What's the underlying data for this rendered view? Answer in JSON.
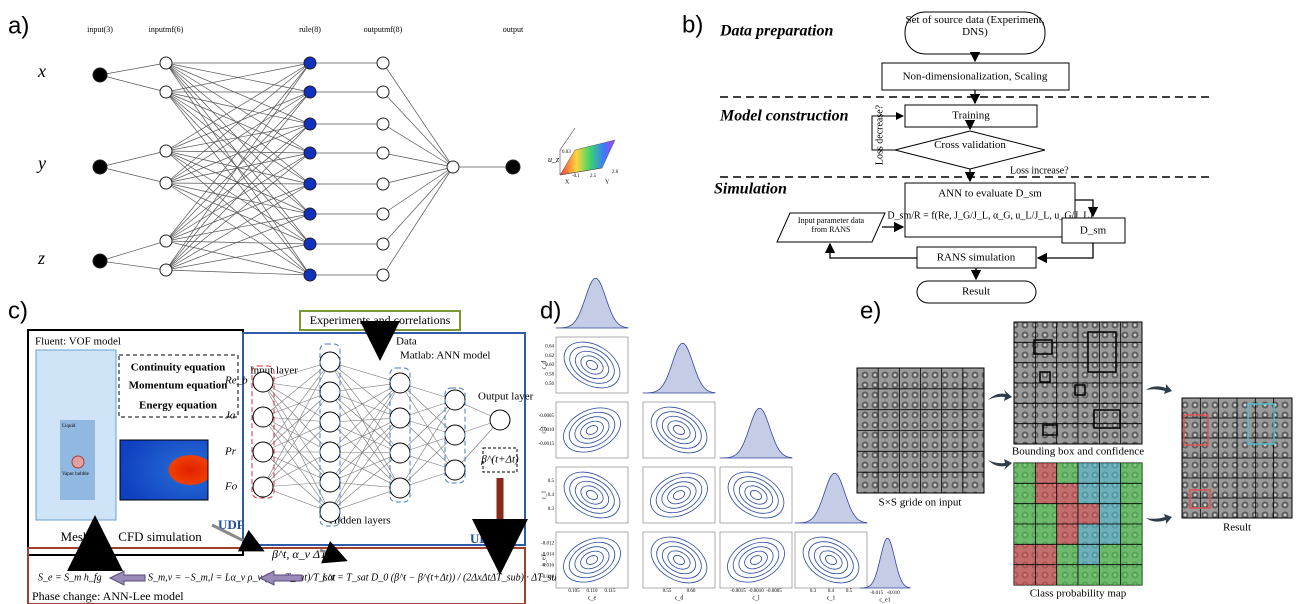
{
  "panel_a": {
    "label": "a)",
    "layers": [
      "input(3)",
      "inputmf(6)",
      "rule(8)",
      "outputmf(8)",
      "output"
    ],
    "inputs": [
      "x",
      "y",
      "z"
    ],
    "surface_labels": [
      "u_z",
      "0.03",
      "X",
      "Y",
      "-0.1",
      "2.5",
      "2.6"
    ]
  },
  "panel_b": {
    "label": "b)",
    "sections": [
      "Data preparation",
      "Model construction",
      "Simulation"
    ],
    "source": "Set of source data (Experiment, DNS)",
    "scaling": "Non-dimensionalization, Scaling",
    "training": "Training",
    "cross": "Cross validation",
    "loss_decrease": "Loss decrease?",
    "loss_increase": "Loss increase?",
    "ann": "ANN to evaluate D_sm",
    "formula": "D_sm/R = f(Re, J_G/J_L, α_G, u_L/J_L, u_G/J_L)",
    "input_param": "Input parameter data from RANS",
    "dsm": "D_sm",
    "rans": "RANS simulation",
    "result": "Result"
  },
  "panel_c": {
    "label": "c)",
    "fluent": "Fluent: VOF model",
    "equations": [
      "Continuity equation",
      "Momentum equation",
      "Energy equation"
    ],
    "liquid": "Liquid",
    "vapor": "Vapor bubble",
    "mesh": "Mesh",
    "cfd": "CFD simulation",
    "udf": "UDF",
    "experiments": "Experiments and correlations",
    "data": "Data",
    "matlab": "Matlab: ANN model",
    "input_layer": "Input layer",
    "inputs": [
      "Re_b",
      "Ja",
      "Pr",
      "Fo"
    ],
    "hidden": "Hidden layers",
    "output_layer": "Output layer",
    "beta_next": "β^(t+Δt)",
    "beta_t": "β^t, α_v ΔT^t",
    "eq1": "S_e = S_m h_fg",
    "eq2": "S_m,v = −S_m,l = Lα_v ρ_v (T − T_sat)/T_sat",
    "eq3": "L^t = T_sat D_0 (β^t − β^(t+Δt)) / (2ΔxΔtΔT_sub) · ΔT_sub/ΔT^t",
    "phase": "Phase change: ANN-Lee model"
  },
  "panel_d": {
    "label": "d)",
    "x_axis_labels": [
      "c_e",
      "c_d",
      "c_l",
      "c_1",
      "c_e1"
    ],
    "y_axis_labels": [
      "c_d",
      "c_l",
      "c_1",
      "c_e1"
    ],
    "x_ticks": [
      [
        "0.105",
        "0.110",
        "0.115"
      ],
      [
        "0.55",
        "0.60"
      ],
      [
        "-0.0015",
        "-0.0010",
        "-0.0005"
      ],
      [
        "0.3",
        "0.4",
        "0.5"
      ],
      [
        "-0.015",
        "-0.010"
      ]
    ],
    "y_ticks": [
      [
        "0.64",
        "0.62",
        "0.60",
        "0.58",
        "0.56"
      ],
      [
        "-0.0005",
        "-0.0010",
        "-0.0015"
      ],
      [
        "0.5",
        "0.4",
        "0.3"
      ],
      [
        "-0.012",
        "-0.014",
        "-0.016",
        "-0.018"
      ]
    ]
  },
  "panel_e": {
    "label": "e)",
    "grid_caption": "S×S gride on input",
    "bbox_caption": "Bounding box and confidence",
    "class_caption": "Class probability map",
    "result_caption": "Result"
  }
}
